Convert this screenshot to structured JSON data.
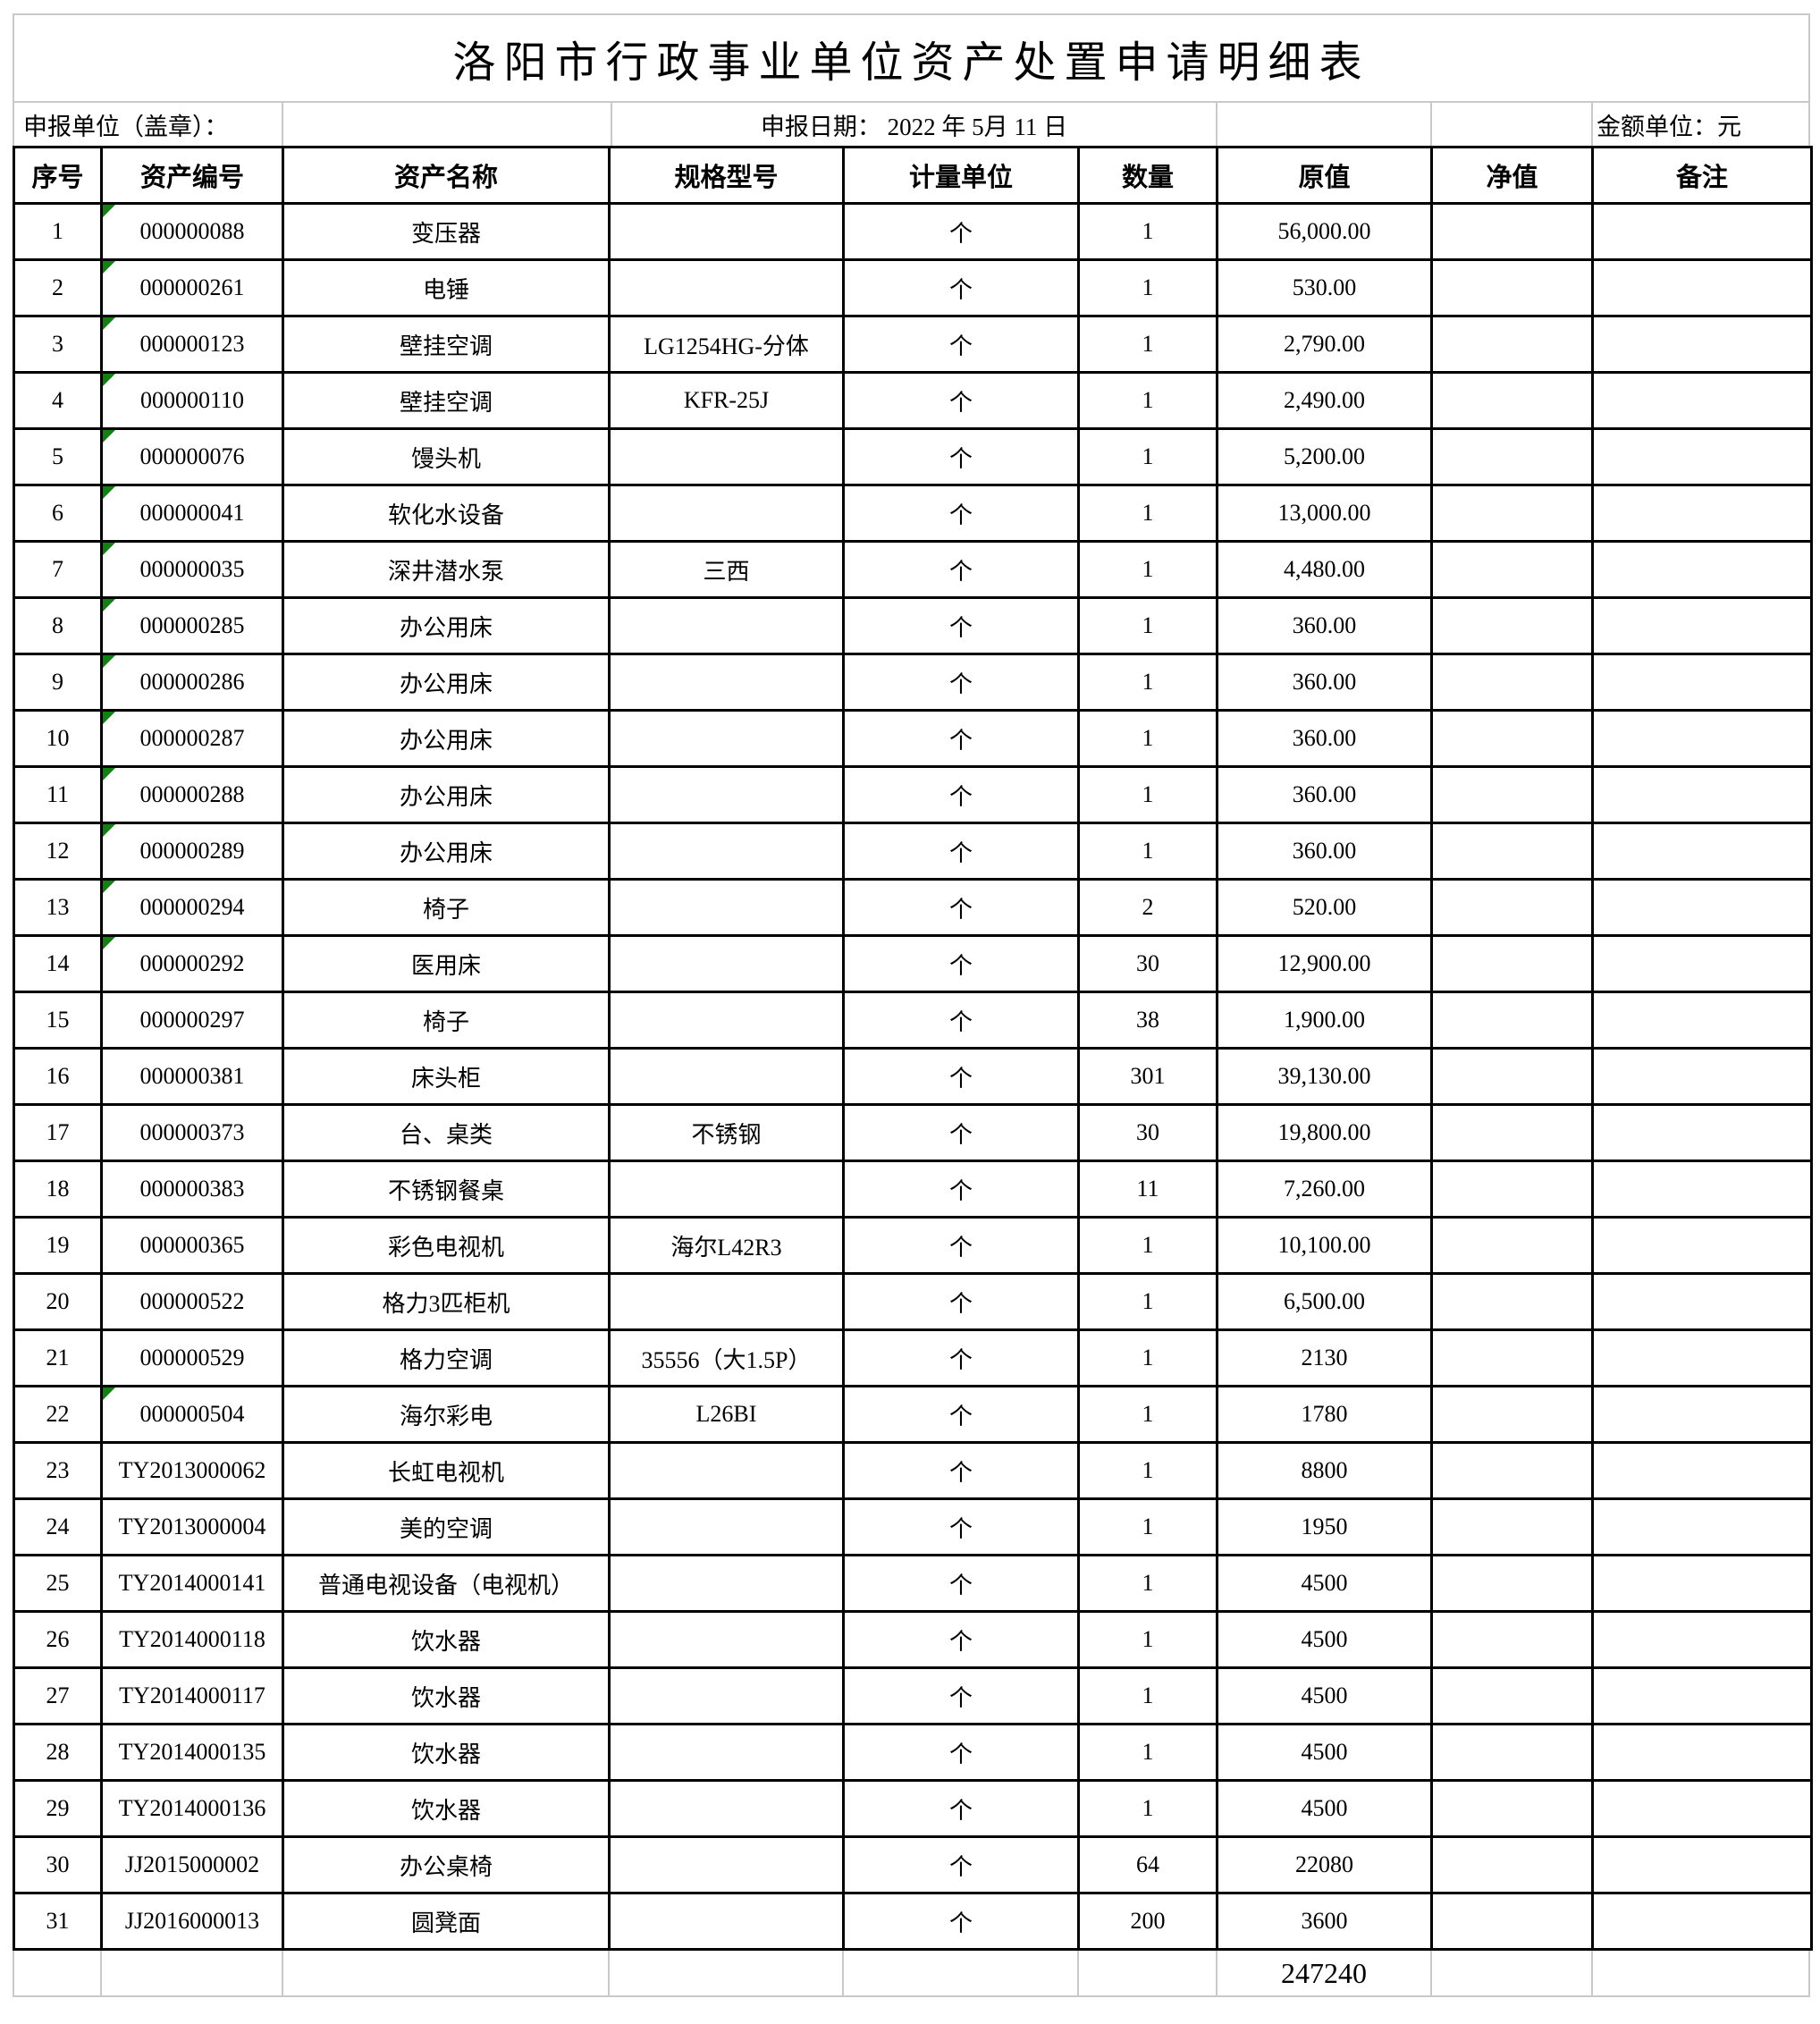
{
  "title": "洛阳市行政事业单位资产处置申请明细表",
  "info": {
    "declare_unit": "申报单位（盖章）：",
    "declare_date": "申报日期：  2022 年 5月 11 日",
    "amount_unit": "金额单位：元"
  },
  "columns": [
    "序号",
    "资产编号",
    "资产名称",
    "规格型号",
    "计量单位",
    "数量",
    "原值",
    "净值",
    "备注"
  ],
  "flag_color": "#148014",
  "table_border_color": "#000000",
  "gridline_color": "#c9c9c9",
  "rows": [
    {
      "no": "1",
      "code": "000000088",
      "name": "变压器",
      "spec": "",
      "unit": "个",
      "qty": "1",
      "value": "56,000.00",
      "net": "",
      "note": "",
      "flag": true,
      "num_align": "right"
    },
    {
      "no": "2",
      "code": "000000261",
      "name": "电锤",
      "spec": "",
      "unit": "个",
      "qty": "1",
      "value": "530.00",
      "net": "",
      "note": "",
      "flag": true,
      "num_align": "right"
    },
    {
      "no": "3",
      "code": "000000123",
      "name": "壁挂空调",
      "spec": "LG1254HG-分体",
      "unit": "个",
      "qty": "1",
      "value": "2,790.00",
      "net": "",
      "note": "",
      "flag": true,
      "num_align": "right"
    },
    {
      "no": "4",
      "code": "000000110",
      "name": "壁挂空调",
      "spec": "KFR-25J",
      "unit": "个",
      "qty": "1",
      "value": "2,490.00",
      "net": "",
      "note": "",
      "flag": true,
      "num_align": "right"
    },
    {
      "no": "5",
      "code": "000000076",
      "name": "馒头机",
      "spec": "",
      "unit": "个",
      "qty": "1",
      "value": "5,200.00",
      "net": "",
      "note": "",
      "flag": true,
      "num_align": "right"
    },
    {
      "no": "6",
      "code": "000000041",
      "name": "软化水设备",
      "spec": "",
      "unit": "个",
      "qty": "1",
      "value": "13,000.00",
      "net": "",
      "note": "",
      "flag": true,
      "num_align": "right"
    },
    {
      "no": "7",
      "code": "000000035",
      "name": "深井潜水泵",
      "spec": "三西",
      "unit": "个",
      "qty": "1",
      "value": "4,480.00",
      "net": "",
      "note": "",
      "flag": true,
      "num_align": "right"
    },
    {
      "no": "8",
      "code": "000000285",
      "name": "办公用床",
      "spec": "",
      "unit": "个",
      "qty": "1",
      "value": "360.00",
      "net": "",
      "note": "",
      "flag": true,
      "num_align": "right"
    },
    {
      "no": "9",
      "code": "000000286",
      "name": "办公用床",
      "spec": "",
      "unit": "个",
      "qty": "1",
      "value": "360.00",
      "net": "",
      "note": "",
      "flag": true,
      "num_align": "right"
    },
    {
      "no": "10",
      "code": "000000287",
      "name": "办公用床",
      "spec": "",
      "unit": "个",
      "qty": "1",
      "value": "360.00",
      "net": "",
      "note": "",
      "flag": true,
      "num_align": "right"
    },
    {
      "no": "11",
      "code": "000000288",
      "name": "办公用床",
      "spec": "",
      "unit": "个",
      "qty": "1",
      "value": "360.00",
      "net": "",
      "note": "",
      "flag": true,
      "num_align": "right"
    },
    {
      "no": "12",
      "code": "000000289",
      "name": "办公用床",
      "spec": "",
      "unit": "个",
      "qty": "1",
      "value": "360.00",
      "net": "",
      "note": "",
      "flag": true,
      "num_align": "right"
    },
    {
      "no": "13",
      "code": "000000294",
      "name": "椅子",
      "spec": "",
      "unit": "个",
      "qty": "2",
      "value": "520.00",
      "net": "",
      "note": "",
      "flag": true,
      "num_align": "right"
    },
    {
      "no": "14",
      "code": "000000292",
      "name": "医用床",
      "spec": "",
      "unit": "个",
      "qty": "30",
      "value": "12,900.00",
      "net": "",
      "note": "",
      "flag": true,
      "num_align": "right"
    },
    {
      "no": "15",
      "code": "000000297",
      "name": "椅子",
      "spec": "",
      "unit": "个",
      "qty": "38",
      "value": "1,900.00",
      "net": "",
      "note": "",
      "flag": false,
      "num_align": "right"
    },
    {
      "no": "16",
      "code": "000000381",
      "name": "床头柜",
      "spec": "",
      "unit": "个",
      "qty": "301",
      "value": "39,130.00",
      "net": "",
      "note": "",
      "flag": false,
      "num_align": "right"
    },
    {
      "no": "17",
      "code": "000000373",
      "name": "台、桌类",
      "spec": "不锈钢",
      "unit": "个",
      "qty": "30",
      "value": "19,800.00",
      "net": "",
      "note": "",
      "flag": false,
      "num_align": "right"
    },
    {
      "no": "18",
      "code": "000000383",
      "name": "不锈钢餐桌",
      "spec": "",
      "unit": "个",
      "qty": "11",
      "value": "7,260.00",
      "net": "",
      "note": "",
      "flag": false,
      "num_align": "right"
    },
    {
      "no": "19",
      "code": "000000365",
      "name": "彩色电视机",
      "spec": "海尔L42R3",
      "unit": "个",
      "qty": "1",
      "value": "10,100.00",
      "net": "",
      "note": "",
      "flag": false,
      "num_align": "right"
    },
    {
      "no": "20",
      "code": "000000522",
      "name": "格力3匹柜机",
      "spec": "",
      "unit": "个",
      "qty": "1",
      "value": "6,500.00",
      "net": "",
      "note": "",
      "flag": false,
      "num_align": "right"
    },
    {
      "no": "21",
      "code": "000000529",
      "name": "格力空调",
      "spec": "35556（大1.5P）",
      "unit": "个",
      "qty": "1",
      "value": "2130",
      "net": "",
      "note": "",
      "flag": false,
      "num_align": "center"
    },
    {
      "no": "22",
      "code": "000000504",
      "name": "海尔彩电",
      "spec": "L26BI",
      "unit": "个",
      "qty": "1",
      "value": "1780",
      "net": "",
      "note": "",
      "flag": true,
      "num_align": "center"
    },
    {
      "no": "23",
      "code": "TY2013000062",
      "name": "长虹电视机",
      "spec": "",
      "unit": "个",
      "qty": "1",
      "value": "8800",
      "net": "",
      "note": "",
      "flag": false,
      "num_align": "center"
    },
    {
      "no": "24",
      "code": "TY2013000004",
      "name": "美的空调",
      "spec": "",
      "unit": "个",
      "qty": "1",
      "value": "1950",
      "net": "",
      "note": "",
      "flag": false,
      "num_align": "center"
    },
    {
      "no": "25",
      "code": "TY2014000141",
      "name": "普通电视设备（电视机）",
      "spec": "",
      "unit": "个",
      "qty": "1",
      "value": "4500",
      "net": "",
      "note": "",
      "flag": false,
      "num_align": "center"
    },
    {
      "no": "26",
      "code": "TY2014000118",
      "name": "饮水器",
      "spec": "",
      "unit": "个",
      "qty": "1",
      "value": "4500",
      "net": "",
      "note": "",
      "flag": false,
      "num_align": "center"
    },
    {
      "no": "27",
      "code": "TY2014000117",
      "name": "饮水器",
      "spec": "",
      "unit": "个",
      "qty": "1",
      "value": "4500",
      "net": "",
      "note": "",
      "flag": false,
      "num_align": "center"
    },
    {
      "no": "28",
      "code": "TY2014000135",
      "name": "饮水器",
      "spec": "",
      "unit": "个",
      "qty": "1",
      "value": "4500",
      "net": "",
      "note": "",
      "flag": false,
      "num_align": "center"
    },
    {
      "no": "29",
      "code": "TY2014000136",
      "name": "饮水器",
      "spec": "",
      "unit": "个",
      "qty": "1",
      "value": "4500",
      "net": "",
      "note": "",
      "flag": false,
      "num_align": "center"
    },
    {
      "no": "30",
      "code": "JJ2015000002",
      "name": "办公桌椅",
      "spec": "",
      "unit": "个",
      "qty": "64",
      "value": "22080",
      "net": "",
      "note": "",
      "flag": false,
      "num_align": "center"
    },
    {
      "no": "31",
      "code": "JJ2016000013",
      "name": "圆凳面",
      "spec": "",
      "unit": "个",
      "qty": "200",
      "value": "3600",
      "net": "",
      "note": "",
      "flag": false,
      "num_align": "center"
    }
  ],
  "total": {
    "original_value_total": "247240"
  }
}
